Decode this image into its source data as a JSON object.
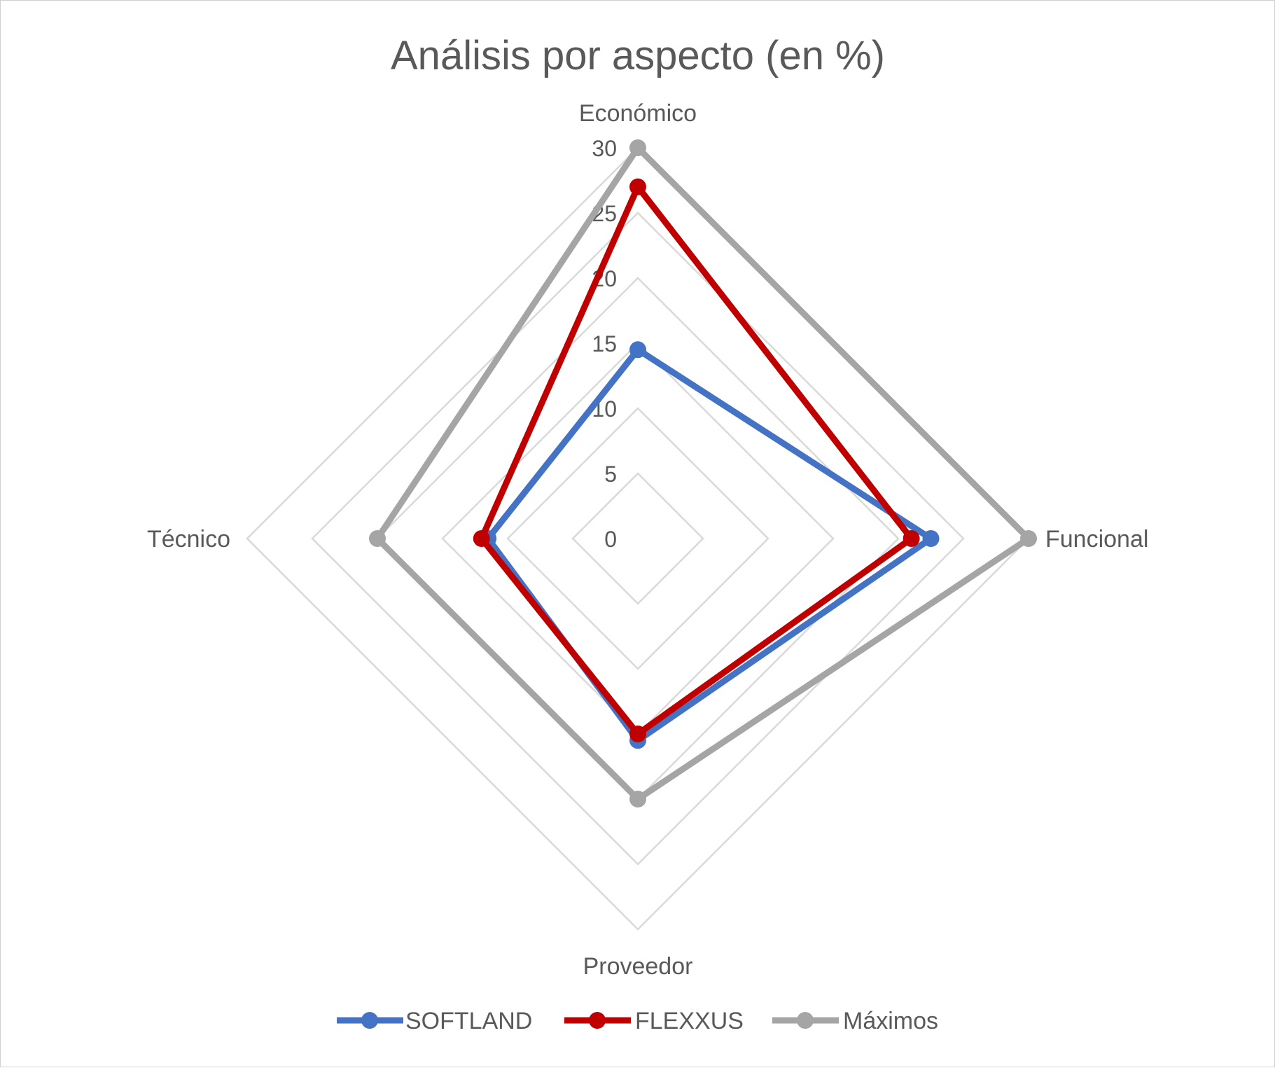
{
  "chart_data": {
    "type": "radar",
    "title": "Análisis por aspecto (en %)",
    "categories": [
      "Económico",
      "Funcional",
      "Proveedor",
      "Técnico"
    ],
    "rmin": 0,
    "rmax": 30,
    "ticks": [
      0,
      5,
      10,
      15,
      20,
      25,
      30
    ],
    "tick_labels": [
      "0",
      "5",
      "10",
      "15",
      "20",
      "25",
      "30"
    ],
    "grid": true,
    "legend_position": "bottom",
    "series": [
      {
        "name": "SOFTLAND",
        "color": "#4472C4",
        "values": [
          14.5,
          22.5,
          15.5,
          11.5
        ]
      },
      {
        "name": "FLEXXUS",
        "color": "#C00000",
        "values": [
          27,
          21,
          15,
          12
        ]
      },
      {
        "name": "Máximos",
        "color": "#A5A5A5",
        "values": [
          30,
          30,
          20,
          20
        ]
      }
    ]
  }
}
